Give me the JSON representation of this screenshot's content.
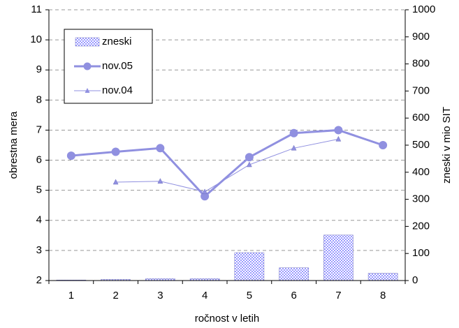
{
  "chart_data": {
    "type": "bar-line",
    "xlabel": "ročnost v letih",
    "ylabel": "obrestna mera",
    "y2label": "zneski v mio SIT",
    "categories": [
      "1",
      "2",
      "3",
      "4",
      "5",
      "6",
      "7",
      "8"
    ],
    "series": [
      {
        "name": "zneski",
        "type": "bar",
        "axis": "y2",
        "color": "#9999ff",
        "values": [
          2,
          4,
          7,
          7,
          103,
          47,
          168,
          27
        ]
      },
      {
        "name": "nov.05",
        "type": "line",
        "marker": "circle",
        "color": "#9090e0",
        "values": [
          6.15,
          6.28,
          6.4,
          4.8,
          6.1,
          6.9,
          7.0,
          6.5
        ]
      },
      {
        "name": "nov.04",
        "type": "line",
        "marker": "triangle",
        "color": "#9090e0",
        "values": [
          null,
          5.27,
          5.3,
          4.95,
          5.85,
          6.4,
          6.7,
          null
        ]
      }
    ],
    "ylim": [
      2,
      11
    ],
    "yticks": [
      2,
      3,
      4,
      5,
      6,
      7,
      8,
      9,
      10,
      11
    ],
    "y2lim": [
      0,
      1000
    ],
    "y2ticks": [
      0,
      100,
      200,
      300,
      400,
      500,
      600,
      700,
      800,
      900,
      1000
    ],
    "grid": true,
    "legend": "upper left"
  }
}
